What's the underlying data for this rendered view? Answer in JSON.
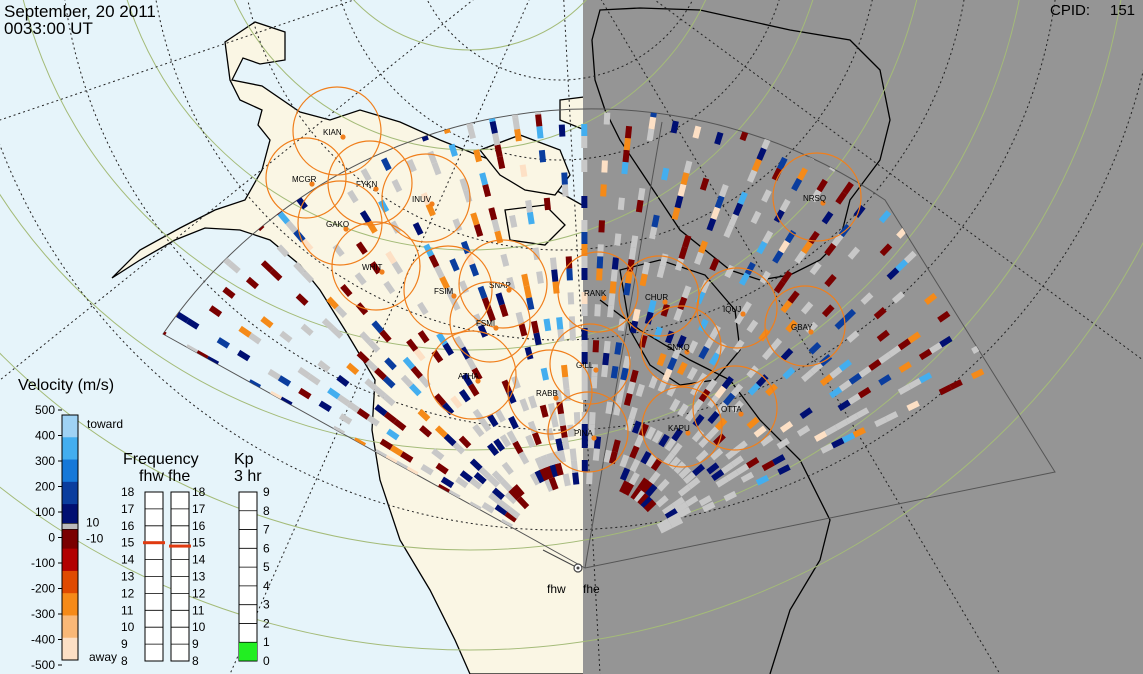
{
  "header": {
    "date": "September, 20 2011",
    "time": "0033:00 UT",
    "cpid_label": "CPID:",
    "cpid_value": "151"
  },
  "colors": {
    "ocean": "#e6f4fa",
    "land": "#faf6e4",
    "night": "#959595",
    "grid_green": "#a4bb78",
    "station_ring": "#f07f1c",
    "station_dot": "#f07f1c",
    "fov_line": "#555555",
    "ground_scatter": "#c8c8c8"
  },
  "stations": [
    {
      "code": "KIAN"
    },
    {
      "code": "MCGR"
    },
    {
      "code": "FYKN"
    },
    {
      "code": "INUV"
    },
    {
      "code": "GAKO"
    },
    {
      "code": "WHIT"
    },
    {
      "code": "FSIM"
    },
    {
      "code": "SNAP"
    },
    {
      "code": "FSMI"
    },
    {
      "code": "RANK"
    },
    {
      "code": "CHUR"
    },
    {
      "code": "IQUJ"
    },
    {
      "code": "GBAY"
    },
    {
      "code": "SNKQ"
    },
    {
      "code": "NRSQ"
    },
    {
      "code": "ATHA"
    },
    {
      "code": "GILL"
    },
    {
      "code": "RABB"
    },
    {
      "code": "PINA"
    },
    {
      "code": "KAPU"
    },
    {
      "code": "OTTA"
    }
  ],
  "radars": {
    "west": "fhw",
    "east": "fhe"
  },
  "velocity_legend": {
    "title": "Velocity (m/s)",
    "toward_label": "toward",
    "away_label": "away",
    "ticks": [
      "500",
      "400",
      "300",
      "200",
      "100",
      "0",
      "-100",
      "-200",
      "-300",
      "-400",
      "-500"
    ],
    "side_ticks": [
      "10",
      "-10"
    ],
    "colors": [
      "#9fd2f4",
      "#43aeef",
      "#1578d8",
      "#0a3d9e",
      "#000f72",
      "#7a0000",
      "#b20000",
      "#df4a00",
      "#f58a18",
      "#f9b877",
      "#fde0c5"
    ]
  },
  "frequency_legend": {
    "title": "Frequency",
    "columns": [
      "fhw",
      "fhe"
    ],
    "ticks": [
      "18",
      "17",
      "16",
      "15",
      "14",
      "13",
      "12",
      "11",
      "10",
      "9",
      "8"
    ],
    "fhw_mhz": 15.0,
    "fhe_mhz": 14.8,
    "marker_color": "#e03a10"
  },
  "kp_legend": {
    "title": "Kp",
    "subtitle": "3 hr",
    "ticks": [
      "9",
      "8",
      "7",
      "6",
      "5",
      "4",
      "3",
      "2",
      "1",
      "0"
    ],
    "value": 1,
    "fill_color": "#22ee22"
  }
}
